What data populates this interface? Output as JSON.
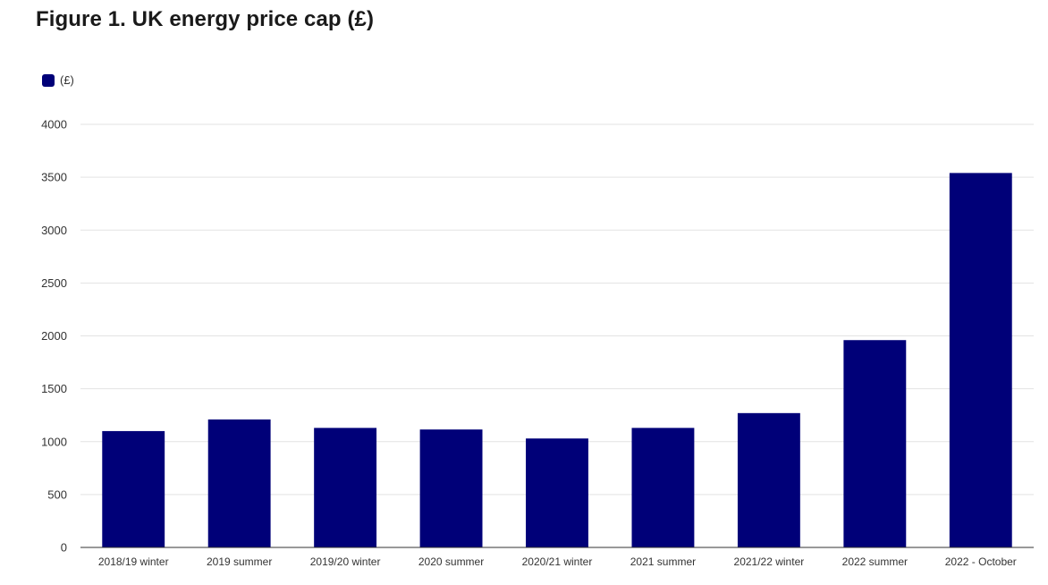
{
  "title": "Figure 1. UK energy price cap (£)",
  "chart_data": {
    "type": "bar",
    "title": "Figure 1. UK energy price cap (£)",
    "xlabel": "",
    "ylabel": "",
    "legend": {
      "placement": "top-left",
      "entries": [
        "(£)"
      ]
    },
    "grid": true,
    "ylim": [
      0,
      4000
    ],
    "yticks": [
      0,
      500,
      1000,
      1500,
      2000,
      2500,
      3000,
      3500,
      4000
    ],
    "categories": [
      "2018/19 winter",
      "2019 summer",
      "2019/20 winter",
      "2020 summer",
      "2020/21 winter",
      "2021 summer",
      "2021/22 winter",
      "2022 summer",
      "2022 - October"
    ],
    "series": [
      {
        "name": "(£)",
        "color": "#000078",
        "values": [
          1100,
          1210,
          1130,
          1115,
          1030,
          1130,
          1270,
          1960,
          3540
        ]
      }
    ]
  }
}
